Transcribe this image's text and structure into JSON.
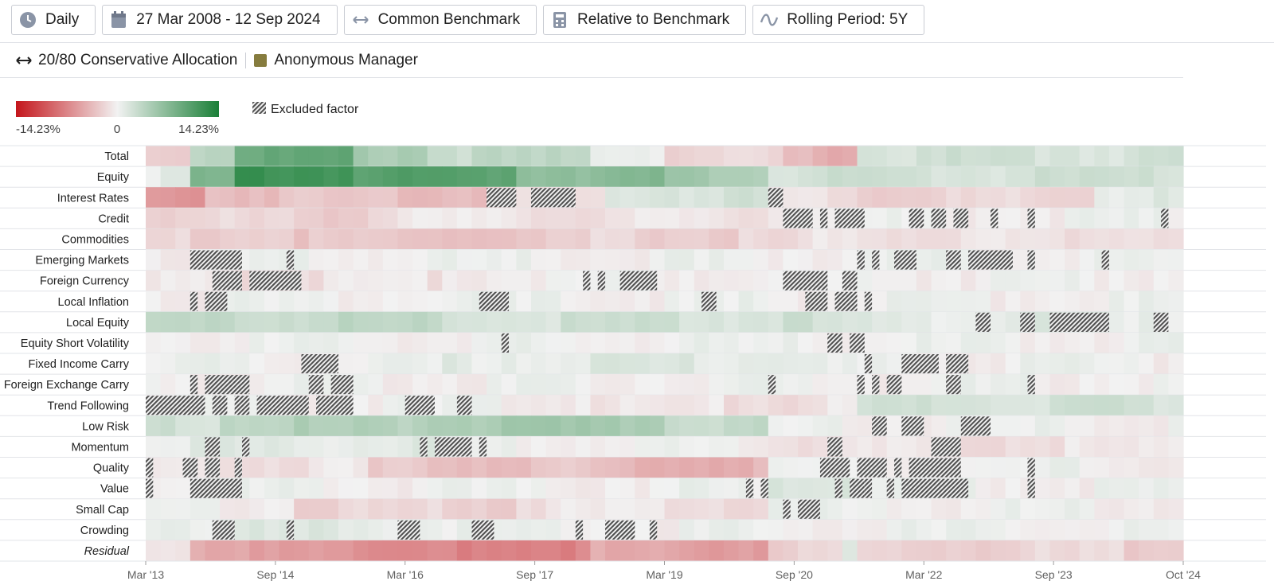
{
  "toolbar": {
    "frequency": {
      "label": "Daily",
      "icon": "clock-icon"
    },
    "date_range": {
      "label": "27 Mar 2008 - 12 Sep 2024",
      "icon": "calendar-icon"
    },
    "benchmark": {
      "label": "Common Benchmark",
      "icon": "arrows-horizontal-icon"
    },
    "mode": {
      "label": "Relative to Benchmark",
      "icon": "calculator-icon"
    },
    "rolling": {
      "label": "Rolling Period: 5Y",
      "icon": "wave-icon"
    }
  },
  "subheader": {
    "portfolio": "20/80 Conservative Allocation",
    "manager": "Anonymous Manager"
  },
  "colors": {
    "negative": "#c4161c",
    "neutral": "#f2f2f2",
    "positive": "#1a7f37",
    "swatch": "#867c3e",
    "hatch": "#505050"
  },
  "chart_data": {
    "type": "heatmap",
    "title": "",
    "legend": {
      "min_label": "-14.23%",
      "mid_label": "0",
      "max_label": "14.23%",
      "excluded_label": "Excluded factor"
    },
    "value_range": [
      -14.23,
      14.23
    ],
    "x_tick_labels": [
      "Mar '13",
      "Sep '14",
      "Mar '16",
      "Sep '17",
      "Mar '19",
      "Sep '20",
      "Mar '22",
      "Sep '23",
      "Oct '24"
    ],
    "period_start": "Mar '13",
    "period_end": "Oct '24",
    "columns": 70,
    "rows": [
      {
        "name": "Total",
        "italic": false,
        "segments": [
          [
            0,
            3,
            -2
          ],
          [
            3,
            6,
            4
          ],
          [
            6,
            14,
            9
          ],
          [
            14,
            19,
            5
          ],
          [
            19,
            30,
            3
          ],
          [
            30,
            35,
            1
          ],
          [
            35,
            43,
            -2
          ],
          [
            43,
            48,
            -4
          ],
          [
            48,
            58,
            2
          ],
          [
            58,
            70,
            2
          ]
        ],
        "excluded": []
      },
      {
        "name": "Equity",
        "italic": false,
        "segments": [
          [
            0,
            3,
            1
          ],
          [
            3,
            6,
            7
          ],
          [
            6,
            14,
            12
          ],
          [
            14,
            25,
            10
          ],
          [
            25,
            35,
            7
          ],
          [
            35,
            42,
            5
          ],
          [
            42,
            70,
            2
          ]
        ],
        "excluded": []
      },
      {
        "name": "Interest Rates",
        "italic": false,
        "segments": [
          [
            0,
            4,
            -6
          ],
          [
            4,
            23,
            -3
          ],
          [
            23,
            31,
            -2
          ],
          [
            31,
            42,
            2
          ],
          [
            42,
            48,
            -1
          ],
          [
            48,
            64,
            -2
          ],
          [
            64,
            70,
            1
          ]
        ],
        "excluded": [
          [
            23,
            25
          ],
          [
            26,
            29
          ],
          [
            42,
            43
          ]
        ]
      },
      {
        "name": "Credit",
        "italic": false,
        "segments": [
          [
            0,
            15,
            -2
          ],
          [
            15,
            42,
            -1
          ],
          [
            42,
            70,
            0
          ]
        ],
        "excluded": [
          [
            43,
            45
          ],
          [
            45.5,
            46
          ],
          [
            46.5,
            48.5
          ],
          [
            51.5,
            52.5
          ],
          [
            53,
            54
          ],
          [
            54.5,
            55.5
          ],
          [
            57,
            57.5
          ],
          [
            59.5,
            60
          ],
          [
            68.5,
            69
          ]
        ]
      },
      {
        "name": "Commodities",
        "italic": false,
        "segments": [
          [
            0,
            10,
            -2
          ],
          [
            10,
            30,
            -3
          ],
          [
            30,
            45,
            -2
          ],
          [
            45,
            70,
            -1
          ]
        ],
        "excluded": []
      },
      {
        "name": "Emerging Markets",
        "italic": false,
        "segments": [
          [
            0,
            70,
            0
          ]
        ],
        "excluded": [
          [
            3,
            6.5
          ],
          [
            9.5,
            10
          ],
          [
            48,
            48.5
          ],
          [
            49,
            49.5
          ],
          [
            50.5,
            52
          ],
          [
            54,
            55
          ],
          [
            55.5,
            58.5
          ],
          [
            59.5,
            60
          ],
          [
            64.5,
            65
          ]
        ]
      },
      {
        "name": "Foreign Currency",
        "italic": false,
        "segments": [
          [
            0,
            20,
            -1
          ],
          [
            20,
            42,
            0
          ],
          [
            42,
            70,
            0
          ]
        ],
        "excluded": [
          [
            4.5,
            6.5
          ],
          [
            7,
            10.5
          ],
          [
            29.5,
            30
          ],
          [
            30.5,
            31
          ],
          [
            32,
            34.5
          ],
          [
            43,
            46
          ],
          [
            47,
            48
          ]
        ]
      },
      {
        "name": "Local Inflation",
        "italic": false,
        "segments": [
          [
            0,
            70,
            0
          ]
        ],
        "excluded": [
          [
            3,
            3.5
          ],
          [
            4,
            5.5
          ],
          [
            22.5,
            24.5
          ],
          [
            37.5,
            38.5
          ],
          [
            44.5,
            46
          ],
          [
            46.5,
            48
          ],
          [
            48.5,
            49
          ]
        ]
      },
      {
        "name": "Local Equity",
        "italic": false,
        "segments": [
          [
            0,
            20,
            3
          ],
          [
            20,
            45,
            2
          ],
          [
            45,
            70,
            1
          ]
        ],
        "excluded": [
          [
            56,
            57
          ],
          [
            59,
            60
          ],
          [
            61,
            65
          ],
          [
            68,
            69
          ]
        ]
      },
      {
        "name": "Equity Short Volatility",
        "italic": false,
        "segments": [
          [
            0,
            70,
            0
          ]
        ],
        "excluded": [
          [
            24,
            24.5
          ],
          [
            46,
            47
          ],
          [
            47.5,
            48.5
          ]
        ]
      },
      {
        "name": "Fixed Income Carry",
        "italic": false,
        "segments": [
          [
            0,
            20,
            0
          ],
          [
            20,
            45,
            1
          ],
          [
            45,
            70,
            0
          ]
        ],
        "excluded": [
          [
            10.5,
            13
          ],
          [
            48.5,
            49
          ],
          [
            51,
            53.5
          ],
          [
            54,
            55.5
          ]
        ]
      },
      {
        "name": "Foreign Exchange Carry",
        "italic": false,
        "segments": [
          [
            0,
            70,
            0
          ]
        ],
        "excluded": [
          [
            3,
            3.5
          ],
          [
            4,
            7
          ],
          [
            11,
            12
          ],
          [
            12.5,
            14
          ],
          [
            42,
            42.5
          ],
          [
            48,
            48.5
          ],
          [
            49,
            49.5
          ],
          [
            50,
            51
          ],
          [
            54,
            55
          ],
          [
            59.5,
            60
          ]
        ]
      },
      {
        "name": "Trend Following",
        "italic": false,
        "segments": [
          [
            0,
            30,
            0
          ],
          [
            30,
            48,
            -1
          ],
          [
            48,
            70,
            2
          ]
        ],
        "excluded": [
          [
            0,
            4
          ],
          [
            4.5,
            5.5
          ],
          [
            6,
            7
          ],
          [
            7.5,
            11
          ],
          [
            11.5,
            14
          ],
          [
            17.5,
            19.5
          ],
          [
            21,
            22
          ]
        ]
      },
      {
        "name": "Low Risk",
        "italic": false,
        "segments": [
          [
            0,
            5,
            2
          ],
          [
            5,
            18,
            4
          ],
          [
            18,
            35,
            5
          ],
          [
            35,
            42,
            3
          ],
          [
            42,
            70,
            0
          ]
        ],
        "excluded": [
          [
            49,
            50
          ],
          [
            51,
            52.5
          ],
          [
            55,
            57
          ]
        ]
      },
      {
        "name": "Momentum",
        "italic": false,
        "segments": [
          [
            0,
            20,
            1
          ],
          [
            20,
            42,
            0
          ],
          [
            42,
            70,
            -1
          ]
        ],
        "excluded": [
          [
            4,
            5
          ],
          [
            6.5,
            7
          ],
          [
            18.5,
            19
          ],
          [
            19.5,
            22
          ],
          [
            22.5,
            23
          ],
          [
            46,
            47
          ],
          [
            53,
            55
          ]
        ]
      },
      {
        "name": "Quality",
        "italic": false,
        "segments": [
          [
            0,
            15,
            -1
          ],
          [
            15,
            30,
            -3
          ],
          [
            30,
            42,
            -4
          ],
          [
            42,
            70,
            0
          ]
        ],
        "excluded": [
          [
            0,
            0.5
          ],
          [
            2.5,
            3.5
          ],
          [
            4,
            5
          ],
          [
            6,
            6.5
          ],
          [
            45.5,
            47.5
          ],
          [
            48,
            50
          ],
          [
            50.5,
            51
          ],
          [
            51.5,
            55
          ],
          [
            59.5,
            60
          ]
        ]
      },
      {
        "name": "Value",
        "italic": false,
        "segments": [
          [
            0,
            42,
            0
          ],
          [
            42,
            48,
            2
          ],
          [
            48,
            70,
            0
          ]
        ],
        "excluded": [
          [
            0,
            0.5
          ],
          [
            3,
            6.5
          ],
          [
            40.5,
            41
          ],
          [
            41.5,
            42
          ],
          [
            46.5,
            47
          ],
          [
            47.5,
            48.5
          ],
          [
            48.5,
            49
          ],
          [
            50,
            50.5
          ],
          [
            51,
            55.5
          ],
          [
            59.5,
            60
          ]
        ]
      },
      {
        "name": "Small Cap",
        "italic": false,
        "segments": [
          [
            0,
            10,
            0
          ],
          [
            10,
            25,
            -2
          ],
          [
            25,
            42,
            -1
          ],
          [
            42,
            70,
            0
          ]
        ],
        "excluded": [
          [
            43,
            43.5
          ],
          [
            44,
            45.5
          ]
        ]
      },
      {
        "name": "Crowding",
        "italic": false,
        "segments": [
          [
            0,
            20,
            1
          ],
          [
            20,
            42,
            0
          ],
          [
            42,
            70,
            0
          ]
        ],
        "excluded": [
          [
            4.5,
            6
          ],
          [
            9.5,
            10
          ],
          [
            17,
            18.5
          ],
          [
            22,
            23.5
          ],
          [
            29,
            29.5
          ],
          [
            31,
            33
          ],
          [
            34,
            34.5
          ]
        ]
      },
      {
        "name": "Residual",
        "italic": true,
        "segments": [
          [
            0,
            3,
            -1
          ],
          [
            3,
            14,
            -5
          ],
          [
            14,
            30,
            -7
          ],
          [
            30,
            42,
            -5
          ],
          [
            42,
            47,
            -2
          ],
          [
            47,
            48,
            1
          ],
          [
            48,
            70,
            -2
          ]
        ],
        "excluded": []
      }
    ]
  }
}
